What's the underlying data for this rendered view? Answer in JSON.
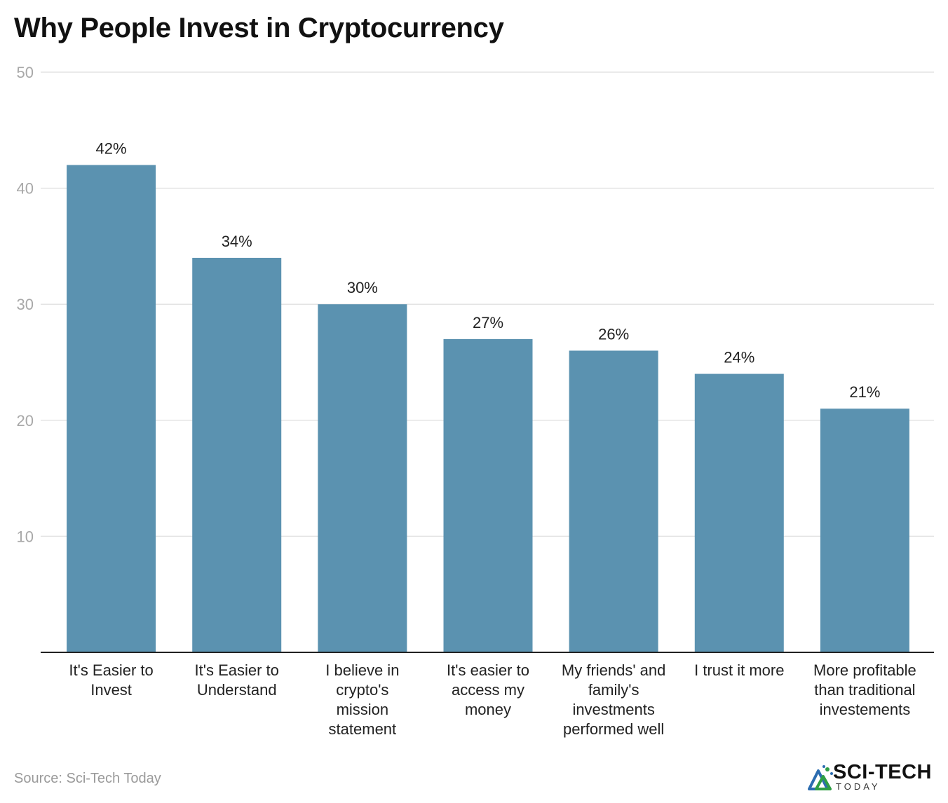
{
  "title": "Why People Invest in Cryptocurrency",
  "source": "Source: Sci-Tech Today",
  "logo": {
    "name": "SCI-TECH",
    "sub": "TODAY",
    "icon": "sci-tech-logo-icon"
  },
  "colors": {
    "bar": "#5b92b0",
    "grid": "#e3e3e3",
    "axis": "#222222",
    "tick": "#a8a8a8"
  },
  "chart_data": {
    "type": "bar",
    "categories": [
      [
        "It's Easier to",
        "Invest"
      ],
      [
        "It's Easier to",
        "Understand"
      ],
      [
        "I believe in",
        "crypto's",
        "mission",
        "statement"
      ],
      [
        "It's easier to",
        "access my",
        "money"
      ],
      [
        "My friends' and",
        "family's",
        "investments",
        "performed well"
      ],
      [
        "I trust it more"
      ],
      [
        "More profitable",
        "than traditional",
        "investements"
      ]
    ],
    "values": [
      42,
      34,
      30,
      27,
      26,
      24,
      21
    ],
    "data_labels": [
      "42%",
      "34%",
      "30%",
      "27%",
      "26%",
      "24%",
      "21%"
    ],
    "ylim": [
      0,
      50
    ],
    "yticks": [
      10,
      20,
      30,
      40,
      50
    ],
    "grid": true,
    "legend": "none"
  }
}
